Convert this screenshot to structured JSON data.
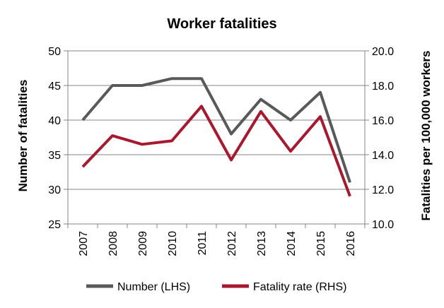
{
  "chart_data": {
    "type": "line",
    "title": "Worker fatalities",
    "categories": [
      "2007",
      "2008",
      "2009",
      "2010",
      "2011",
      "2012",
      "2013",
      "2014",
      "2015",
      "2016"
    ],
    "series": [
      {
        "name": "Number (LHS)",
        "axis": "left",
        "color": "#595959",
        "values": [
          40,
          45,
          45,
          46,
          46,
          38,
          43,
          40,
          44,
          31
        ]
      },
      {
        "name": "Fatality rate (RHS)",
        "axis": "right",
        "color": "#A6192E",
        "values": [
          13.3,
          15.1,
          14.6,
          14.8,
          16.8,
          13.7,
          16.5,
          14.2,
          16.2,
          11.6
        ]
      }
    ],
    "ylabel_left": "Number of fatalities",
    "ylabel_right": "Fatalities per 100,000 workers",
    "ylim_left": [
      25,
      50
    ],
    "yticks_left": [
      "25",
      "30",
      "35",
      "40",
      "45",
      "50"
    ],
    "ylim_right": [
      10,
      20
    ],
    "yticks_right": [
      "10.0",
      "12.0",
      "14.0",
      "16.0",
      "18.0",
      "20.0"
    ],
    "grid": true,
    "legend_position": "bottom"
  }
}
